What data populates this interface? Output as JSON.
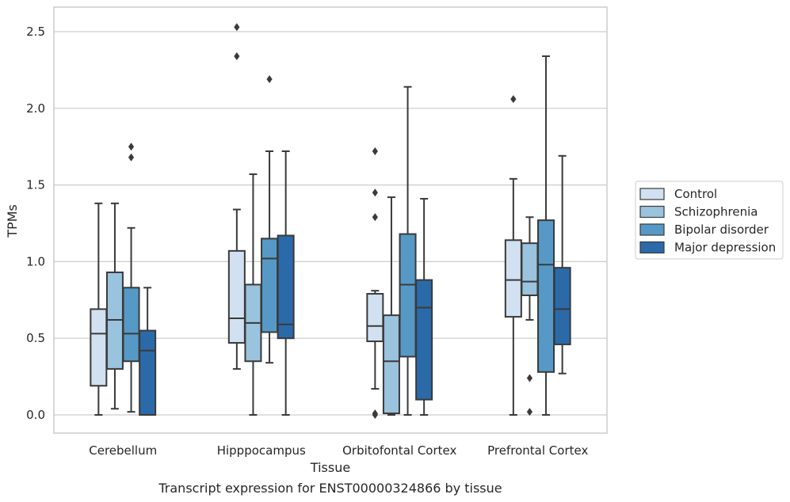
{
  "caption": "Transcript expression for ENST00000324866 by tissue",
  "chart_data": {
    "type": "box",
    "xlabel": "Tissue",
    "ylabel": "TPMs",
    "ylim": [
      -0.12,
      2.67
    ],
    "yticks": [
      0.0,
      0.5,
      1.0,
      1.5,
      2.0,
      2.5
    ],
    "ytick_labels": [
      "0.0",
      "0.5",
      "1.0",
      "1.5",
      "2.0",
      "2.5"
    ],
    "grid": "horizontal",
    "legend_position": "right",
    "categories": [
      "Cerebellum",
      "Hipppocampus",
      "Orbitofontal Cortex",
      "Prefrontal Cortex"
    ],
    "series": [
      {
        "name": "Control",
        "color": "#d1e1f1",
        "boxes": [
          {
            "whislo": 0.0,
            "q1": 0.19,
            "med": 0.53,
            "q3": 0.69,
            "whishi": 1.38,
            "fliers": []
          },
          {
            "whislo": 0.3,
            "q1": 0.47,
            "med": 0.63,
            "q3": 1.07,
            "whishi": 1.34,
            "fliers": [
              2.34,
              2.53
            ]
          },
          {
            "whislo": 0.17,
            "q1": 0.48,
            "med": 0.58,
            "q3": 0.79,
            "whishi": 0.81,
            "fliers": [
              0.0,
              0.01,
              1.29,
              1.45,
              1.72
            ]
          },
          {
            "whislo": 0.0,
            "q1": 0.64,
            "med": 0.88,
            "q3": 1.14,
            "whishi": 1.54,
            "fliers": [
              2.06
            ]
          }
        ]
      },
      {
        "name": "Schizophrenia",
        "color": "#9ac3de",
        "boxes": [
          {
            "whislo": 0.04,
            "q1": 0.3,
            "med": 0.62,
            "q3": 0.93,
            "whishi": 1.38,
            "fliers": []
          },
          {
            "whislo": 0.0,
            "q1": 0.35,
            "med": 0.6,
            "q3": 0.85,
            "whishi": 1.57,
            "fliers": []
          },
          {
            "whislo": 0.0,
            "q1": 0.01,
            "med": 0.35,
            "q3": 0.65,
            "whishi": 1.42,
            "fliers": []
          },
          {
            "whislo": 0.62,
            "q1": 0.78,
            "med": 0.87,
            "q3": 1.12,
            "whishi": 1.29,
            "fliers": [
              0.02,
              0.24
            ]
          }
        ]
      },
      {
        "name": "Bipolar disorder",
        "color": "#5799c6",
        "boxes": [
          {
            "whislo": 0.02,
            "q1": 0.35,
            "med": 0.53,
            "q3": 0.83,
            "whishi": 1.22,
            "fliers": [
              1.68,
              1.75
            ]
          },
          {
            "whislo": 0.34,
            "q1": 0.54,
            "med": 1.02,
            "q3": 1.15,
            "whishi": 1.72,
            "fliers": [
              2.19
            ]
          },
          {
            "whislo": 0.0,
            "q1": 0.38,
            "med": 0.85,
            "q3": 1.18,
            "whishi": 2.14,
            "fliers": []
          },
          {
            "whislo": 0.0,
            "q1": 0.28,
            "med": 0.98,
            "q3": 1.27,
            "whishi": 2.34,
            "fliers": []
          }
        ]
      },
      {
        "name": "Major depression",
        "color": "#2b6aa9",
        "boxes": [
          {
            "whislo": 0.0,
            "q1": 0.0,
            "med": 0.42,
            "q3": 0.55,
            "whishi": 0.83,
            "fliers": []
          },
          {
            "whislo": 0.0,
            "q1": 0.5,
            "med": 0.59,
            "q3": 1.17,
            "whishi": 1.72,
            "fliers": []
          },
          {
            "whislo": 0.0,
            "q1": 0.1,
            "med": 0.7,
            "q3": 0.88,
            "whishi": 1.41,
            "fliers": []
          },
          {
            "whislo": 0.27,
            "q1": 0.46,
            "med": 0.69,
            "q3": 0.96,
            "whishi": 1.69,
            "fliers": []
          }
        ]
      }
    ]
  }
}
